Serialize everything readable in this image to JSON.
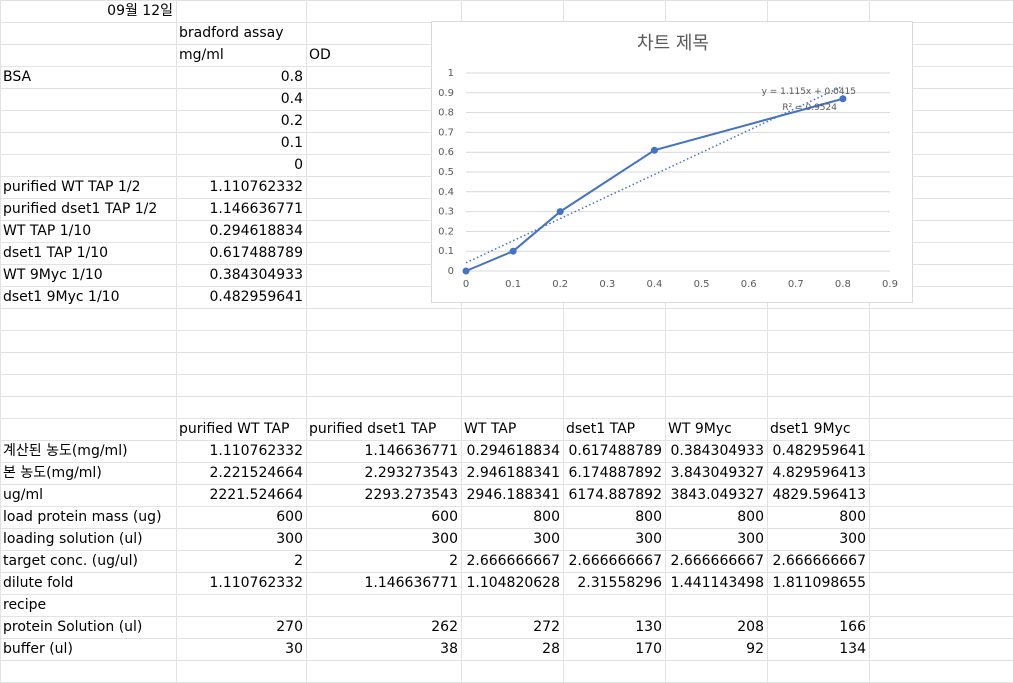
{
  "top": {
    "date": "09월 12일"
  },
  "header": {
    "assay": "bradford assay",
    "unit": "mg/ml",
    "od": "OD"
  },
  "bsa_label": "BSA",
  "standards": [
    "0.8",
    "0.4",
    "0.2",
    "0.1",
    "0"
  ],
  "samples": [
    {
      "label": "purified WT TAP 1/2",
      "value": "1.110762332"
    },
    {
      "label": "purified dset1 TAP 1/2",
      "value": "1.146636771"
    },
    {
      "label": "WT TAP 1/10",
      "value": "0.294618834"
    },
    {
      "label": "dset1 TAP 1/10",
      "value": "0.617488789"
    },
    {
      "label": "WT 9Myc 1/10",
      "value": "0.384304933"
    },
    {
      "label": "dset1 9Myc 1/10",
      "value": "0.482959641"
    }
  ],
  "table": {
    "columns": [
      "purified WT TAP",
      "purified dset1 TAP",
      "WT TAP",
      "dset1 TAP",
      "WT 9Myc",
      "dset1 9Myc"
    ],
    "rows": [
      {
        "label": "계산된 농도(mg/ml)",
        "values": [
          "1.110762332",
          "1.146636771",
          "0.294618834",
          "0.617488789",
          "0.384304933",
          "0.482959641"
        ]
      },
      {
        "label": "본 농도(mg/ml)",
        "values": [
          "2.221524664",
          "2.293273543",
          "2.946188341",
          "6.174887892",
          "3.843049327",
          "4.829596413"
        ]
      },
      {
        "label": "ug/ml",
        "values": [
          "2221.524664",
          "2293.273543",
          "2946.188341",
          "6174.887892",
          "3843.049327",
          "4829.596413"
        ]
      },
      {
        "label": "load protein mass (ug)",
        "values": [
          "600",
          "600",
          "800",
          "800",
          "800",
          "800"
        ]
      },
      {
        "label": "loading solution (ul)",
        "values": [
          "300",
          "300",
          "300",
          "300",
          "300",
          "300"
        ]
      },
      {
        "label": "target conc. (ug/ul)",
        "values": [
          "2",
          "2",
          "2.666666667",
          "2.666666667",
          "2.666666667",
          "2.666666667"
        ]
      },
      {
        "label": "dilute fold",
        "values": [
          "1.110762332",
          "1.146636771",
          "1.104820628",
          "2.31558296",
          "1.441143498",
          "1.811098655"
        ]
      },
      {
        "label": "recipe",
        "values": [
          "",
          "",
          "",
          "",
          "",
          ""
        ]
      },
      {
        "label": "protein Solution (ul)",
        "values": [
          "270",
          "262",
          "272",
          "130",
          "208",
          "166"
        ]
      },
      {
        "label": "buffer (ul)",
        "values": [
          "30",
          "38",
          "28",
          "170",
          "92",
          "134"
        ]
      }
    ]
  },
  "chart_data": {
    "type": "scatter",
    "title": "차트 제목",
    "x": [
      0,
      0.1,
      0.2,
      0.4,
      0.8
    ],
    "series": [
      {
        "values": [
          0,
          0.1,
          0.3,
          0.61,
          0.87
        ],
        "color": "#4472c4"
      }
    ],
    "trendline": {
      "slope": 1.115,
      "intercept": 0.0415,
      "equation": "y = 1.115x + 0.0415",
      "r2": "R² = 0.9524"
    },
    "xlim": [
      0,
      0.9
    ],
    "ylim": [
      0,
      1
    ],
    "xticks": [
      "0",
      "0.1",
      "0.2",
      "0.3",
      "0.4",
      "0.5",
      "0.6",
      "0.7",
      "0.8",
      "0.9"
    ],
    "yticks": [
      "0",
      "0.1",
      "0.2",
      "0.3",
      "0.4",
      "0.5",
      "0.6",
      "0.7",
      "0.8",
      "0.9",
      "1"
    ],
    "grid": true,
    "legend": "none"
  }
}
